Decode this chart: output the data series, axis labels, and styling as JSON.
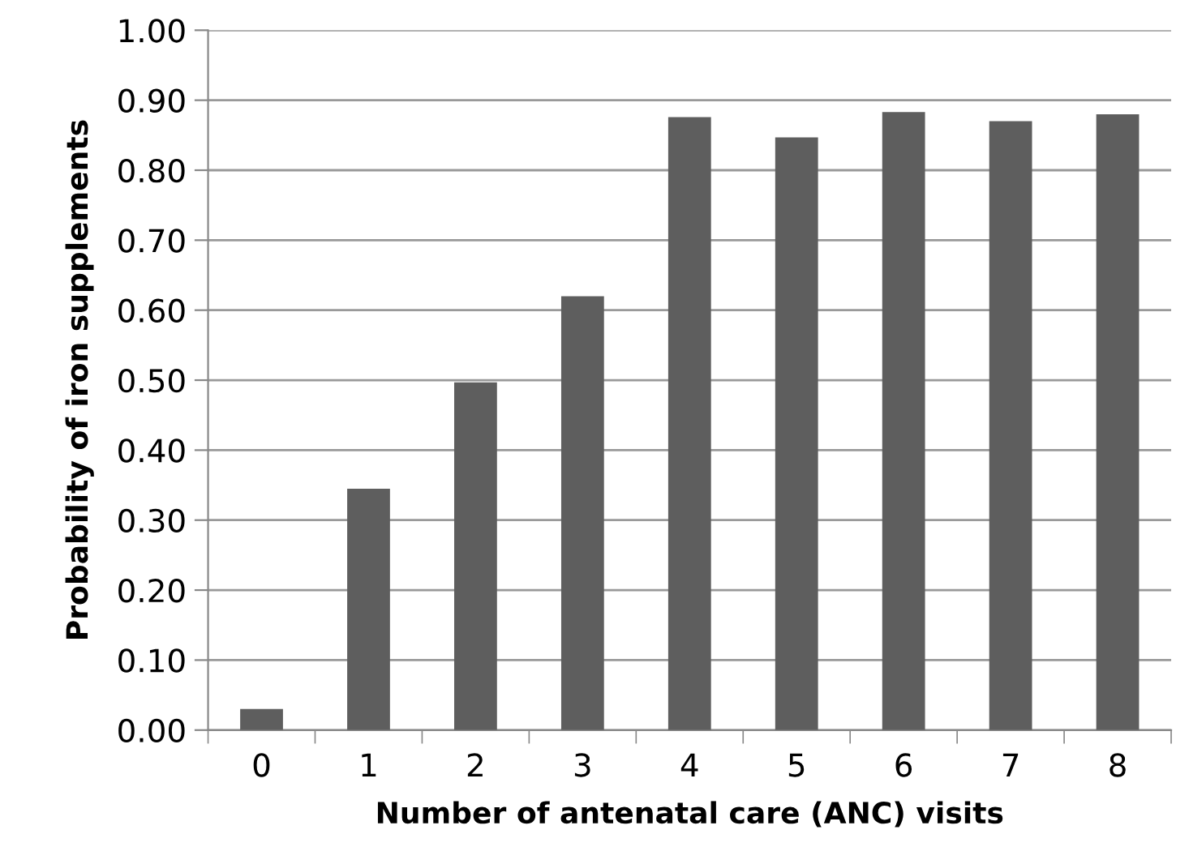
{
  "chart_data": {
    "type": "bar",
    "xlabel": "Number of antenatal care (ANC) visits",
    "ylabel": "Probability of iron supplements",
    "categories": [
      "0",
      "1",
      "2",
      "3",
      "4",
      "5",
      "6",
      "7",
      "8"
    ],
    "values": [
      0.03,
      0.345,
      0.497,
      0.62,
      0.876,
      0.847,
      0.883,
      0.87,
      0.88
    ],
    "color": "#5e5e5e",
    "ylim": [
      0,
      1
    ],
    "yticks": [
      {
        "value": 0,
        "label": "0.00"
      },
      {
        "value": 0.1,
        "label": "0.10"
      },
      {
        "value": 0.2,
        "label": "0.20"
      },
      {
        "value": 0.3,
        "label": "0.30"
      },
      {
        "value": 0.4,
        "label": "0.40"
      },
      {
        "value": 0.5,
        "label": "0.50"
      },
      {
        "value": 0.6,
        "label": "0.60"
      },
      {
        "value": 0.7,
        "label": "0.70"
      },
      {
        "value": 0.8,
        "label": "0.80"
      },
      {
        "value": 0.9,
        "label": "0.90"
      },
      {
        "value": 1.0,
        "label": "1.00"
      }
    ],
    "grid": "y"
  }
}
